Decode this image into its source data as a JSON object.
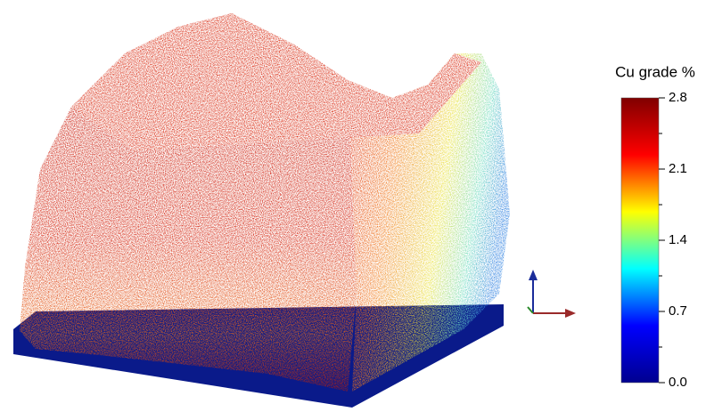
{
  "chart_data": {
    "type": "scatter3d",
    "colorbar": {
      "label": "Cu grade %",
      "colormap": "jet",
      "lim": [
        0,
        2.8
      ],
      "ticks": [
        {
          "value": 0,
          "label": "0.0"
        },
        0.7,
        1.4,
        2.1,
        2.8
      ]
    }
  }
}
